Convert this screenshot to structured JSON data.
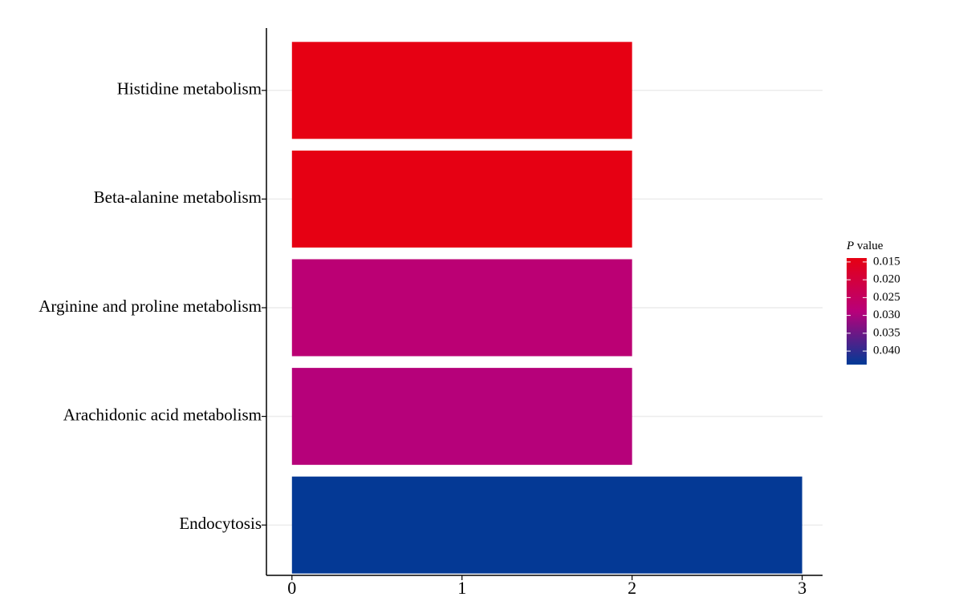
{
  "chart_data": {
    "type": "bar",
    "orientation": "horizontal",
    "categories": [
      "Histidine metabolism",
      "Beta-alanine metabolism",
      "Arginine and proline metabolism",
      "Arachidonic acid metabolism",
      "Endocytosis"
    ],
    "values": [
      2,
      2,
      2,
      2,
      3
    ],
    "p_values": [
      0.014,
      0.014,
      0.028,
      0.029,
      0.0435
    ],
    "xlim": [
      -0.15,
      3.12
    ],
    "xticks": [
      0,
      1,
      2,
      3
    ],
    "grid": true,
    "colorbar": {
      "title": {
        "italic": "P",
        "text": "value"
      },
      "range": [
        0.0139,
        0.0438
      ],
      "colors": [
        "#e60012",
        "#b8007a",
        "#003a96"
      ],
      "ticks": [
        0.015,
        {
          "value": 0.02,
          "label": "0.020"
        },
        0.025,
        {
          "value": 0.03,
          "label": "0.030"
        },
        0.035,
        {
          "value": 0.04,
          "label": "0.040"
        }
      ]
    }
  }
}
